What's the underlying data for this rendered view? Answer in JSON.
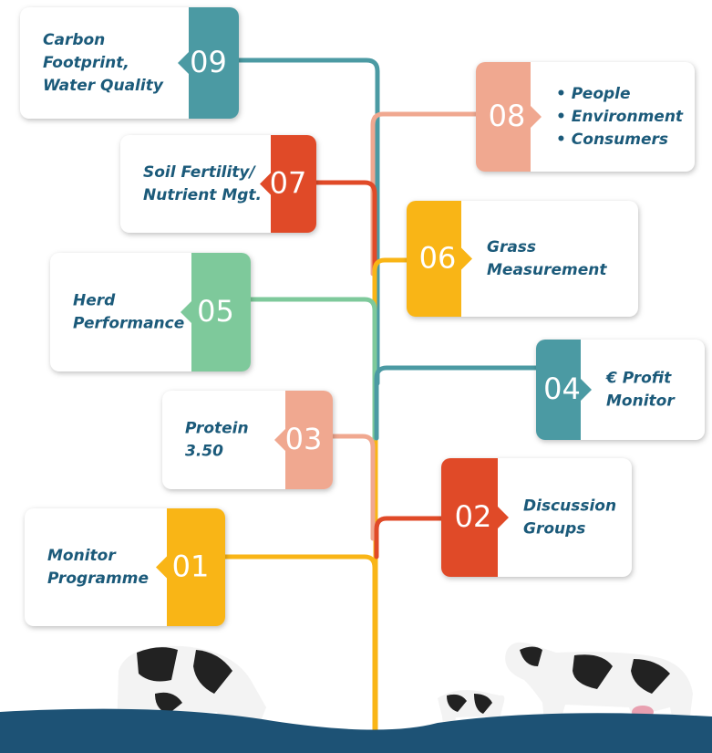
{
  "items": [
    {
      "number": "09",
      "lines": [
        "Carbon",
        "Footprint,",
        "Water Quality"
      ],
      "color": "#4b9aa3"
    },
    {
      "number": "08",
      "lines": [
        "• People",
        "• Environment",
        "• Consumers"
      ],
      "color": "#f0a890"
    },
    {
      "number": "07",
      "lines": [
        "Soil Fertility/",
        "Nutrient Mgt."
      ],
      "color": "#e04a28"
    },
    {
      "number": "06",
      "lines": [
        "Grass",
        "Measurement"
      ],
      "color": "#f9b516"
    },
    {
      "number": "05",
      "lines": [
        "Herd",
        "Performance"
      ],
      "color": "#7ec99b"
    },
    {
      "number": "04",
      "lines": [
        "€ Profit",
        "Monitor"
      ],
      "color": "#4b9aa3"
    },
    {
      "number": "03",
      "lines": [
        "Protein",
        "3.50"
      ],
      "color": "#f0a890"
    },
    {
      "number": "02",
      "lines": [
        "Discussion",
        "Groups"
      ],
      "color": "#e04a28"
    },
    {
      "number": "01",
      "lines": [
        "Monitor",
        "Programme"
      ],
      "color": "#f9b516"
    }
  ]
}
